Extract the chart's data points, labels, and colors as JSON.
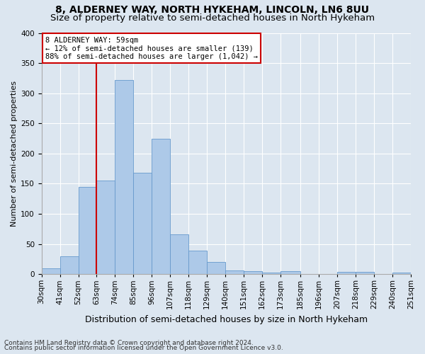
{
  "title_line1": "8, ALDERNEY WAY, NORTH HYKEHAM, LINCOLN, LN6 8UU",
  "title_line2": "Size of property relative to semi-detached houses in North Hykeham",
  "xlabel": "Distribution of semi-detached houses by size in North Hykeham",
  "ylabel": "Number of semi-detached properties",
  "footer1": "Contains HM Land Registry data © Crown copyright and database right 2024.",
  "footer2": "Contains public sector information licensed under the Open Government Licence v3.0.",
  "bin_edges": [
    30,
    41,
    52,
    63,
    74,
    85,
    96,
    107,
    118,
    129,
    140,
    151,
    162,
    173,
    185,
    196,
    207,
    218,
    229,
    240,
    251
  ],
  "bin_labels": [
    "30sqm",
    "41sqm",
    "52sqm",
    "63sqm",
    "74sqm",
    "85sqm",
    "96sqm",
    "107sqm",
    "118sqm",
    "129sqm",
    "140sqm",
    "151sqm",
    "162sqm",
    "173sqm",
    "185sqm",
    "196sqm",
    "207sqm",
    "218sqm",
    "229sqm",
    "240sqm",
    "251sqm"
  ],
  "values": [
    9,
    29,
    144,
    155,
    322,
    168,
    224,
    66,
    39,
    20,
    6,
    5,
    3,
    5,
    0,
    0,
    4,
    4,
    0,
    3
  ],
  "bar_color": "#adc9e8",
  "bar_edge_color": "#6699cc",
  "vline_x": 63,
  "vline_color": "#cc0000",
  "annotation_line1": "8 ALDERNEY WAY: 59sqm",
  "annotation_line2": "← 12% of semi-detached houses are smaller (139)",
  "annotation_line3": "88% of semi-detached houses are larger (1,042) →",
  "annotation_box_color": "#ffffff",
  "annotation_box_edge": "#cc0000",
  "ylim": [
    0,
    400
  ],
  "yticks": [
    0,
    50,
    100,
    150,
    200,
    250,
    300,
    350,
    400
  ],
  "background_color": "#dce6f0",
  "grid_color": "#ffffff",
  "title1_fontsize": 10,
  "title2_fontsize": 9.5,
  "xlabel_fontsize": 9,
  "ylabel_fontsize": 8,
  "tick_fontsize": 7.5,
  "footer_fontsize": 6.5
}
